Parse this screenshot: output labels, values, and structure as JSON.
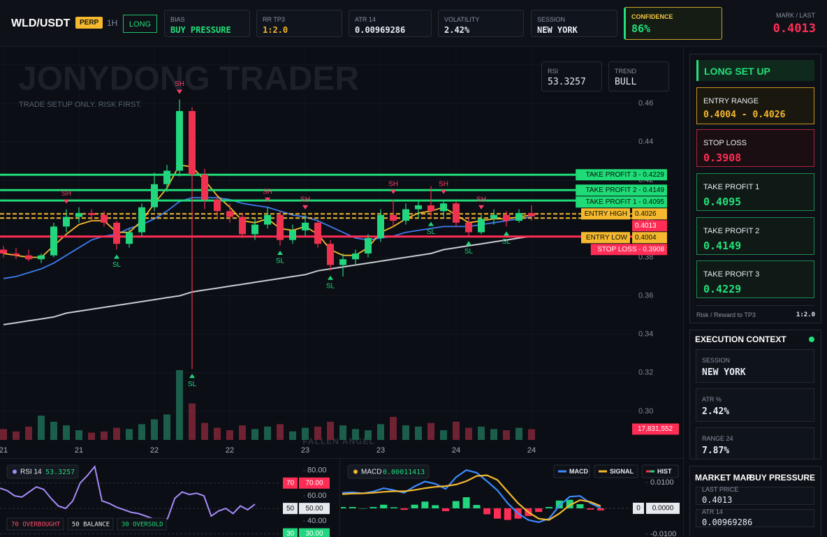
{
  "header": {
    "symbol": "WLD/USDT",
    "badge": "PERP",
    "timeframe": "1H",
    "side": "LONG",
    "stats": [
      {
        "label": "BIAS",
        "value": "BUY PRESSURE"
      },
      {
        "label": "RR TP3",
        "value": "1:2.0"
      },
      {
        "label": "ATR 14",
        "value": "0.00969286"
      },
      {
        "label": "VOLATILITY",
        "value": "2.42%"
      },
      {
        "label": "SESSION",
        "value": "NEW YORK"
      }
    ],
    "confidence": {
      "label": "CONFIDENCE",
      "value": "86%"
    },
    "mark_label": "MARK / LAST"
  },
  "overlay": {
    "watermark": "JONYDONG TRADER",
    "tagline": "TRADE SETUP ONLY. RISK FIRST.",
    "footer_mark": "FALLEN ANGEL",
    "rsi_label": "RSI",
    "trend_label": "TREND",
    "trend_value": "BULL"
  },
  "sidebar": {
    "title": "LONG SET UP",
    "cards": [
      {
        "label": "ENTRY RANGE",
        "value": "0.4004 - 0.4026"
      },
      {
        "label": "STOP LOSS",
        "value": "0.3908"
      },
      {
        "label": "TAKE PROFIT 1",
        "value": "0.4095"
      },
      {
        "label": "TAKE PROFIT 2",
        "value": "0.4149"
      },
      {
        "label": "TAKE PROFIT 3",
        "value": "0.4229"
      }
    ],
    "rr_label": "Risk / Reward to TP3",
    "rr_value": "1:2.0",
    "context_title": "EXECUTION CONTEXT",
    "context": [
      {
        "label": "SESSION",
        "value": "NEW YORK"
      },
      {
        "label": "ATR %",
        "value": "2.42%"
      },
      {
        "label": "RANGE 24",
        "value": "7.87%"
      }
    ],
    "map_title": "MARKET MAP",
    "map_state": "BUY PRESSURE",
    "map_last_label": "LAST PRICE",
    "map_atr_label": "ATR 14",
    "map_atr_value": "0.00969286"
  },
  "chart_data": [
    {
      "type": "candlestick",
      "categories": [
        "21",
        null,
        null,
        null,
        null,
        null,
        "21",
        null,
        null,
        null,
        null,
        null,
        "22",
        null,
        null,
        null,
        null,
        null,
        "22",
        null,
        null,
        null,
        null,
        null,
        "23",
        null,
        null,
        null,
        null,
        null,
        "23",
        null,
        null,
        null,
        null,
        null,
        "24",
        null,
        null,
        null,
        null,
        null,
        "24"
      ],
      "open": [
        0.384,
        0.382,
        0.381,
        0.379,
        0.381,
        0.396,
        0.401,
        0.403,
        0.402,
        0.398,
        0.387,
        0.393,
        0.406,
        0.418,
        0.425,
        0.456,
        0.423,
        0.41,
        0.404,
        0.401,
        0.392,
        0.397,
        0.402,
        0.389,
        0.394,
        0.398,
        0.387,
        0.376,
        0.379,
        0.382,
        0.39,
        0.402,
        0.399,
        0.405,
        0.407,
        0.404,
        0.408,
        0.398,
        0.393,
        0.4,
        0.402,
        0.399,
        0.403
      ],
      "high": [
        0.386,
        0.385,
        0.384,
        0.382,
        0.398,
        0.405,
        0.406,
        0.405,
        0.404,
        0.399,
        0.395,
        0.408,
        0.424,
        0.428,
        0.462,
        0.458,
        0.426,
        0.412,
        0.408,
        0.403,
        0.4,
        0.406,
        0.404,
        0.397,
        0.402,
        0.399,
        0.389,
        0.382,
        0.384,
        0.392,
        0.405,
        0.41,
        0.408,
        0.409,
        0.417,
        0.41,
        0.409,
        0.401,
        0.402,
        0.405,
        0.404,
        0.405,
        0.407
      ],
      "low": [
        0.38,
        0.379,
        0.378,
        0.377,
        0.38,
        0.393,
        0.398,
        0.399,
        0.396,
        0.384,
        0.385,
        0.391,
        0.404,
        0.414,
        0.422,
        0.322,
        0.405,
        0.4,
        0.398,
        0.39,
        0.389,
        0.395,
        0.386,
        0.387,
        0.391,
        0.385,
        0.373,
        0.37,
        0.376,
        0.38,
        0.388,
        0.396,
        0.397,
        0.4,
        0.401,
        0.401,
        0.396,
        0.391,
        0.392,
        0.397,
        0.396,
        0.398,
        0.399
      ],
      "close": [
        0.382,
        0.381,
        0.379,
        0.381,
        0.396,
        0.401,
        0.403,
        0.402,
        0.398,
        0.387,
        0.393,
        0.406,
        0.418,
        0.425,
        0.456,
        0.423,
        0.41,
        0.404,
        0.401,
        0.392,
        0.397,
        0.402,
        0.389,
        0.394,
        0.398,
        0.387,
        0.376,
        0.379,
        0.382,
        0.39,
        0.402,
        0.399,
        0.405,
        0.407,
        0.404,
        0.408,
        0.398,
        0.393,
        0.4,
        0.402,
        0.399,
        0.403,
        0.4013
      ],
      "colors": {
        "up": "#22d67e",
        "down": "#f0314f"
      },
      "volume": [
        18000000,
        14000000,
        22000000,
        40000000,
        30000000,
        24000000,
        16000000,
        12000000,
        14000000,
        20000000,
        18000000,
        26000000,
        34000000,
        42000000,
        115000000,
        60000000,
        28000000,
        20000000,
        16000000,
        24000000,
        18000000,
        22000000,
        26000000,
        14000000,
        20000000,
        22000000,
        30000000,
        24000000,
        18000000,
        16000000,
        26000000,
        38000000,
        24000000,
        22000000,
        28000000,
        16000000,
        30000000,
        20000000,
        22000000,
        18000000,
        16000000,
        20000000,
        17831552
      ],
      "volume_value_labels": [
        null,
        null,
        null,
        null,
        null,
        null,
        null,
        null,
        null,
        null,
        null,
        null,
        null,
        null,
        null,
        null,
        null,
        null,
        null,
        null,
        null,
        null,
        null,
        null,
        null,
        null,
        null,
        null,
        null,
        null,
        null,
        null,
        null,
        null,
        null,
        null,
        null,
        null,
        null,
        null,
        null,
        null,
        "17,831,552"
      ],
      "series": [
        {
          "color": "#c9ccd2",
          "values": [
            0.345,
            0.346,
            0.347,
            0.348,
            0.349,
            0.351,
            0.352,
            0.353,
            0.354,
            0.355,
            0.356,
            0.357,
            0.358,
            0.359,
            0.36,
            0.362,
            0.363,
            0.364,
            0.365,
            0.366,
            0.367,
            0.368,
            0.369,
            0.37,
            0.371,
            0.373,
            0.374,
            0.375,
            0.376,
            0.377,
            0.378,
            0.379,
            0.38,
            0.381,
            0.382,
            0.384,
            0.385,
            0.386,
            0.387,
            0.388,
            0.389,
            0.39,
            0.391
          ]
        },
        {
          "color": "#3d7bf0",
          "values": [
            0.369,
            0.37,
            0.372,
            0.374,
            0.377,
            0.381,
            0.385,
            0.389,
            0.391,
            0.392,
            0.395,
            0.397,
            0.4,
            0.404,
            0.409,
            0.411,
            0.411,
            0.411,
            0.41,
            0.408,
            0.407,
            0.406,
            0.404,
            0.402,
            0.401,
            0.399,
            0.396,
            0.393,
            0.39,
            0.389,
            0.39,
            0.391,
            0.393,
            0.394,
            0.395,
            0.396,
            0.396,
            0.396,
            0.397,
            0.398,
            0.399,
            0.4,
            0.401
          ]
        },
        {
          "color": "#f5b82e",
          "values": [
            0.382,
            0.381,
            0.38,
            0.38,
            0.386,
            0.392,
            0.397,
            0.399,
            0.399,
            0.393,
            0.393,
            0.399,
            0.408,
            0.416,
            0.428,
            0.427,
            0.42,
            0.412,
            0.406,
            0.399,
            0.398,
            0.4,
            0.395,
            0.394,
            0.396,
            0.392,
            0.384,
            0.381,
            0.381,
            0.385,
            0.393,
            0.396,
            0.4,
            0.403,
            0.404,
            0.406,
            0.402,
            0.398,
            0.399,
            0.4,
            0.4,
            0.401,
            0.402
          ]
        }
      ],
      "swing_high": [
        null,
        null,
        null,
        null,
        null,
        "SH",
        null,
        null,
        null,
        null,
        null,
        null,
        null,
        null,
        "SH",
        null,
        null,
        null,
        null,
        null,
        null,
        "SH",
        null,
        null,
        "SH",
        null,
        null,
        null,
        null,
        null,
        null,
        "SH",
        null,
        null,
        null,
        "SH",
        null,
        null,
        "SH",
        null,
        null,
        null,
        null
      ],
      "swing_low": [
        null,
        null,
        null,
        null,
        null,
        null,
        null,
        null,
        null,
        "SL",
        null,
        null,
        null,
        null,
        null,
        "SL",
        null,
        null,
        null,
        null,
        null,
        null,
        "SL",
        null,
        null,
        null,
        "SL",
        null,
        null,
        null,
        null,
        null,
        null,
        null,
        "SL",
        null,
        null,
        "SL",
        null,
        null,
        "SL",
        null,
        null
      ],
      "levels": [
        {
          "label": "TAKE PROFIT 3 - 0.4229",
          "value": 0.4229,
          "color": "#1fdc78",
          "style": "solid"
        },
        {
          "label": "TAKE PROFIT 2 - 0.4149",
          "value": 0.4149,
          "color": "#1fdc78",
          "style": "solid"
        },
        {
          "label": "TAKE PROFIT 1 - 0.4095",
          "value": 0.4095,
          "color": "#1fdc78",
          "style": "solid"
        },
        {
          "label": "ENTRY HIGH",
          "value": 0.4026,
          "color": "#f5b82e",
          "style": "dashed",
          "value_box": true
        },
        {
          "value": 0.4013,
          "color": "#ff2d55",
          "style": "none",
          "value_box": true
        },
        {
          "label": "ENTRY LOW",
          "value": 0.4004,
          "color": "#f5b82e",
          "style": "dashed",
          "value_box": true
        },
        {
          "label": "STOP LOSS - 0.3908",
          "value": 0.3908,
          "color": "#ff2d55",
          "style": "solid"
        }
      ],
      "ylim": [
        0.2851,
        0.4894
      ],
      "yticks": [
        {
          "value": 0.3,
          "label": "0.30"
        },
        0.32,
        0.34,
        0.36,
        0.38,
        {
          "value": 0.4,
          "label": "0.40"
        },
        0.42,
        0.44,
        0.46,
        0.48
      ],
      "grid": true
    },
    {
      "type": "line",
      "title": "RSI 14",
      "series": [
        {
          "color": "#a78bfa",
          "values": [
            66,
            64,
            60,
            59,
            63,
            67,
            65,
            58,
            52,
            50,
            56,
            70,
            76,
            83,
            56,
            54,
            51,
            49,
            47,
            46,
            44,
            42,
            41,
            42,
            58,
            63,
            61,
            62,
            60,
            44,
            48,
            50,
            46,
            52,
            49,
            53.3257
          ]
        }
      ],
      "ylim": [
        27.5,
        88.6
      ],
      "yticks": [
        {
          "value": 80,
          "label": "80.00"
        },
        {
          "value": 60,
          "label": "60.00"
        },
        {
          "value": 40,
          "label": "40.00"
        }
      ],
      "levels": [
        {
          "value": 70,
          "label": "70",
          "value_label": "70.00",
          "color": "#ff2d55"
        },
        {
          "value": 50,
          "label": "50",
          "value_label": "50.00",
          "color": "#e6e9ee"
        },
        {
          "value": 30,
          "label": "30",
          "value_label": "30.00",
          "color": "#22d67e"
        }
      ],
      "legend": [
        "70 OVERBOUGHT",
        "50 BALANCE",
        "30 OVERSOLD"
      ],
      "legend_colors": [
        "#ff4d6a",
        "#e6e9ee",
        "#22d67e"
      ]
    },
    {
      "type": "macd",
      "title": "MACD",
      "series": [
        {
          "name": "MACD",
          "color": "#3d8bff",
          "values": [
            0.006,
            0.0062,
            0.0058,
            0.0065,
            0.0078,
            0.007,
            0.006,
            0.0085,
            0.0104,
            0.0095,
            0.0075,
            0.012,
            0.0148,
            0.0138,
            0.0105,
            0.007,
            0.002,
            -0.002,
            -0.0045,
            -0.0054,
            -0.004,
            0.001,
            0.0045,
            0.0048,
            0.002,
            0.00011413
          ]
        },
        {
          "name": "SIGNAL",
          "color": "#f5b82e",
          "values": [
            0.0055,
            0.0057,
            0.0058,
            0.006,
            0.0064,
            0.0066,
            0.0066,
            0.0071,
            0.0078,
            0.0083,
            0.0086,
            0.0092,
            0.0105,
            0.0125,
            0.0128,
            0.011,
            0.0065,
            0.002,
            -0.0015,
            -0.004,
            -0.0045,
            -0.002,
            0.0012,
            0.0032,
            0.0025,
            0.0009
          ]
        },
        {
          "name": "HIST",
          "colors": [
            "#22d67e",
            "#ff2d55"
          ],
          "values": [
            0.0005,
            0.0005,
            0,
            0.0005,
            0.0014,
            0.0004,
            -0.0006,
            0.0014,
            0.0026,
            0.0012,
            -0.0011,
            0.0028,
            0.0043,
            0.0013,
            -0.0023,
            -0.004,
            -0.0045,
            -0.004,
            -0.003,
            -0.0014,
            0.0005,
            0.003,
            0.0033,
            0.0016,
            -0.0005,
            -0.0008
          ]
        }
      ],
      "ylim": [
        -0.0111,
        0.0189
      ],
      "yticks": [
        {
          "value": 0.01,
          "label": "0.0100"
        },
        {
          "value": -0.01,
          "label": "-0.0100"
        }
      ],
      "zero_line": {
        "value": 0,
        "label": "0",
        "value_label": "0.0000"
      }
    }
  ]
}
